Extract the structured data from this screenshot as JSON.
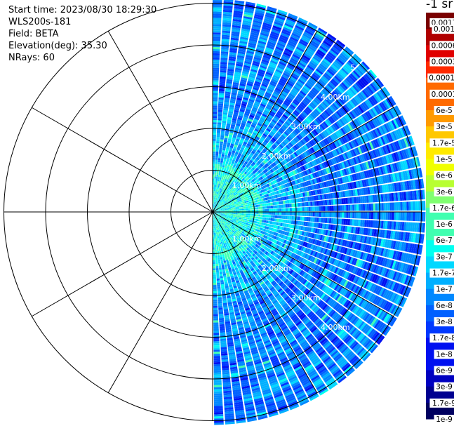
{
  "header": {
    "start_time": "Start time: 2023/08/30 18:29:30",
    "instrument": "WLS200s-181",
    "field": "Field: BETA",
    "elevation": "Elevation(deg): 35.30",
    "nrays": "NRays: 60"
  },
  "colorbar": {
    "unit": "-1 sr",
    "labels": [
      "0.0017",
      "0.001",
      "0.0006",
      "0.0003",
      "0.00017",
      "0.0001",
      "6e-5",
      "3e-5",
      "1.7e-5",
      "1e-5",
      "6e-6",
      "3e-6",
      "1.7e-6",
      "1e-6",
      "6e-7",
      "3e-7",
      "1.7e-7",
      "1e-7",
      "6e-8",
      "3e-8",
      "1.7e-8",
      "1e-8",
      "6e-9",
      "3e-9",
      "1.7e-9",
      "1e-9"
    ]
  },
  "chart_data": {
    "type": "heatmap",
    "projection": "polar-ppi",
    "field": "BETA",
    "nrays": 60,
    "range_rings_km": [
      1,
      2,
      3,
      4,
      5
    ],
    "range_labels_upper": [
      "1.00km",
      "2.00km",
      "3.00km",
      "4.00km",
      "5"
    ],
    "range_labels_lower": [
      "1.00km",
      "2.00km",
      "3.00km",
      "4.00km"
    ],
    "azimuth_sector_deg": [
      0,
      180
    ],
    "max_range_km": 5.1,
    "dominant_value_range": [
      "1e-8",
      "1e-6"
    ],
    "colormap": [
      "#7a0000",
      "#b00000",
      "#e00000",
      "#ff2a00",
      "#ff6a00",
      "#ff9a00",
      "#ffc800",
      "#ffea00",
      "#f0ff00",
      "#b8ff30",
      "#80ff70",
      "#40ffb0",
      "#00fff0",
      "#00d8ff",
      "#00b0ff",
      "#0088ff",
      "#0060ff",
      "#0038ff",
      "#0010f0",
      "#0000c0",
      "#000090",
      "#000060"
    ]
  }
}
